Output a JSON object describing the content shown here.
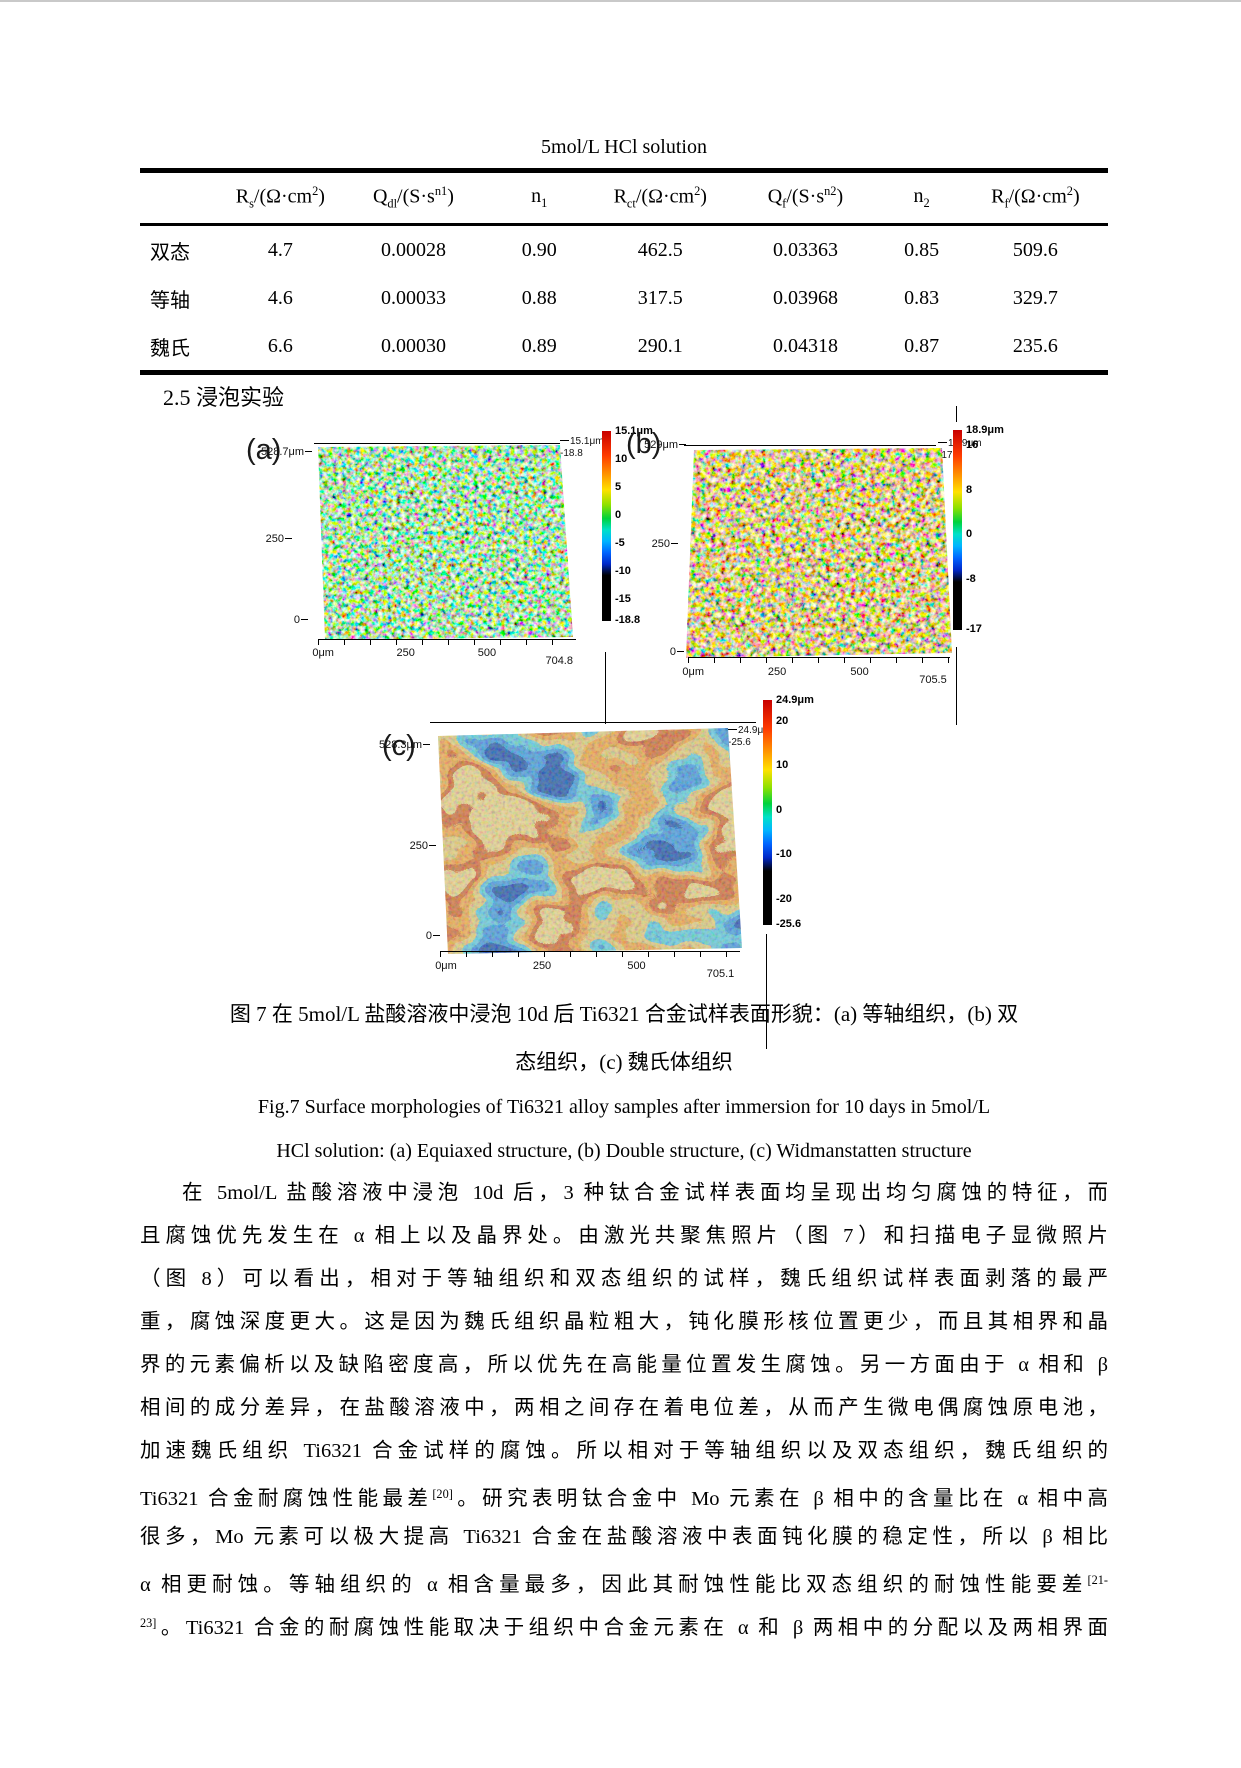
{
  "section_heading": "2.5 浸泡实验",
  "table": {
    "title": "5mol/L HCl solution",
    "headers": [
      [
        {
          "t": "R"
        },
        {
          "t": "s",
          "sub": 1
        },
        {
          "t": "/(Ω·cm"
        },
        {
          "t": "2",
          "sup": 1
        },
        {
          "t": ")"
        }
      ],
      [
        {
          "t": "Q"
        },
        {
          "t": "dl",
          "sub": 1
        },
        {
          "t": "/(S·s"
        },
        {
          "t": "n1",
          "sup": 1
        },
        {
          "t": ")"
        }
      ],
      [
        {
          "t": "n"
        },
        {
          "t": "1",
          "sub": 1
        }
      ],
      [
        {
          "t": "R"
        },
        {
          "t": "ct",
          "sub": 1
        },
        {
          "t": "/(Ω·cm"
        },
        {
          "t": "2",
          "sup": 1
        },
        {
          "t": ")"
        }
      ],
      [
        {
          "t": "Q"
        },
        {
          "t": "f",
          "sub": 1
        },
        {
          "t": "/(S·s"
        },
        {
          "t": "n2",
          "sup": 1
        },
        {
          "t": ")"
        }
      ],
      [
        {
          "t": "n"
        },
        {
          "t": "2",
          "sub": 1
        }
      ],
      [
        {
          "t": "R"
        },
        {
          "t": "f",
          "sub": 1
        },
        {
          "t": "/(Ω·cm"
        },
        {
          "t": "2",
          "sup": 1
        },
        {
          "t": ")"
        }
      ]
    ],
    "rows": [
      {
        "label": "双态",
        "values": [
          "4.7",
          "0.00028",
          "0.90",
          "462.5",
          "0.03363",
          "0.85",
          "509.6"
        ]
      },
      {
        "label": "等轴",
        "values": [
          "4.6",
          "0.00033",
          "0.88",
          "317.5",
          "0.03968",
          "0.83",
          "329.7"
        ]
      },
      {
        "label": "魏氏",
        "values": [
          "6.6",
          "0.00030",
          "0.89",
          "290.1",
          "0.04318",
          "0.87",
          "235.6"
        ]
      }
    ]
  },
  "figures": [
    {
      "tag": "(a)",
      "y_axis": {
        "top": "528.7μm",
        "mid": "250",
        "bottom": "0"
      },
      "x_ticks": [
        "0μm",
        "250",
        "500",
        "704.8"
      ],
      "corner_max": "15.1μm",
      "corner_min": "-18.8",
      "cb": {
        "max_label": "15.1μm",
        "max": 15.1,
        "min": -18.8,
        "ticks": [
          10,
          5,
          0,
          -5,
          -10,
          -15
        ],
        "min_label": "-18.8"
      }
    },
    {
      "tag": "(b)",
      "y_axis": {
        "top": "529μm",
        "mid": "250",
        "bottom": "0"
      },
      "x_ticks": [
        "0μm",
        "250",
        "500",
        "705.5"
      ],
      "corner_max": "18.9μm",
      "corner_min": "-17",
      "cb": {
        "max_label": "18.9μm",
        "max": 18.9,
        "min": -17,
        "ticks": [
          16,
          8,
          0,
          -8
        ],
        "min_label": "-17"
      }
    },
    {
      "tag": "(c)",
      "y_axis": {
        "top": "528.3μm",
        "mid": "250",
        "bottom": "0"
      },
      "x_ticks": [
        "0μm",
        "250",
        "500",
        "705.1"
      ],
      "corner_max": "24.9μm",
      "corner_min": "-25.6",
      "cb": {
        "max_label": "24.9μm",
        "max": 24.9,
        "min": -25.6,
        "ticks": [
          20,
          10,
          0,
          -10,
          -20
        ],
        "min_label": "-25.6"
      }
    }
  ],
  "captions": {
    "zh": [
      "图 7 在 5mol/L 盐酸溶液中浸泡 10d 后 Ti6321 合金试样表面形貌：(a) 等轴组织，(b) 双",
      "态组织，(c) 魏氏体组织"
    ],
    "en": [
      "Fig.7 Surface morphologies of Ti6321 alloy samples after immersion for 10 days in 5mol/L",
      "HCl solution: (a) Equiaxed structure, (b) Double structure, (c) Widmanstatten structure"
    ]
  },
  "body": {
    "lines": [
      [
        {
          "t": "在 5mol/L 盐酸溶液中浸泡 10d 后，3 种钛合金试样表面均呈现出均匀腐蚀的特征，而"
        }
      ],
      [
        {
          "t": "且腐蚀优先发生在 α 相上以及晶界处。由激光共聚焦照片（图 7）和扫描电子显微照片"
        }
      ],
      [
        {
          "t": "（图 8）可以看出，相对于等轴组织和双态组织的试样，魏氏组织试样表面剥落的最严"
        }
      ],
      [
        {
          "t": "重，腐蚀深度更大。这是因为魏氏组织晶粒粗大，钝化膜形核位置更少，而且其相界和晶"
        }
      ],
      [
        {
          "t": "界的元素偏析以及缺陷密度高，所以优先在高能量位置发生腐蚀。另一方面由于 α 相和 β"
        }
      ],
      [
        {
          "t": "相间的成分差异，在盐酸溶液中，两相之间存在着电位差，从而产生微电偶腐蚀原电池，"
        }
      ],
      [
        {
          "t": "加速魏氏组织 Ti6321 合金试样的腐蚀。所以相对于等轴组织以及双态组织，魏氏组织的"
        }
      ],
      [
        {
          "t": "Ti6321 合金耐腐蚀性能最差"
        },
        {
          "t": "[20]",
          "sup": 1
        },
        {
          "t": "。研究表明钛合金中 Mo 元素在 β 相中的含量比在 α 相中高"
        }
      ],
      [
        {
          "t": "很多，Mo 元素可以极大提高 Ti6321 合金在盐酸溶液中表面钝化膜的稳定性，所以 β 相比"
        }
      ],
      [
        {
          "t": "α 相更耐蚀。等轴组织的 α 相含量最多，因此其耐蚀性能比双态组织的耐蚀性能要差"
        },
        {
          "t": "[21-",
          "sup": 1
        }
      ],
      [
        {
          "t": "23]",
          "sup": 1
        },
        {
          "t": "。Ti6321 合金的耐腐蚀性能取决于组织中合金元素在 α 和 β 两相中的分配以及两相界面"
        }
      ]
    ]
  },
  "colors": {
    "scale": [
      {
        "c": "#c80000",
        "p": 0
      },
      {
        "c": "#ff3c00",
        "p": 13
      },
      {
        "c": "#ff9600",
        "p": 23
      },
      {
        "c": "#ffe100",
        "p": 31
      },
      {
        "c": "#8ce100",
        "p": 39
      },
      {
        "c": "#00d23c",
        "p": 46
      },
      {
        "c": "#00e1c8",
        "p": 52
      },
      {
        "c": "#00b4ff",
        "p": 58
      },
      {
        "c": "#0064ff",
        "p": 64
      },
      {
        "c": "#0028c8",
        "p": 70
      },
      {
        "c": "#000000",
        "p": 76
      },
      {
        "c": "#000000",
        "p": 100
      }
    ]
  }
}
